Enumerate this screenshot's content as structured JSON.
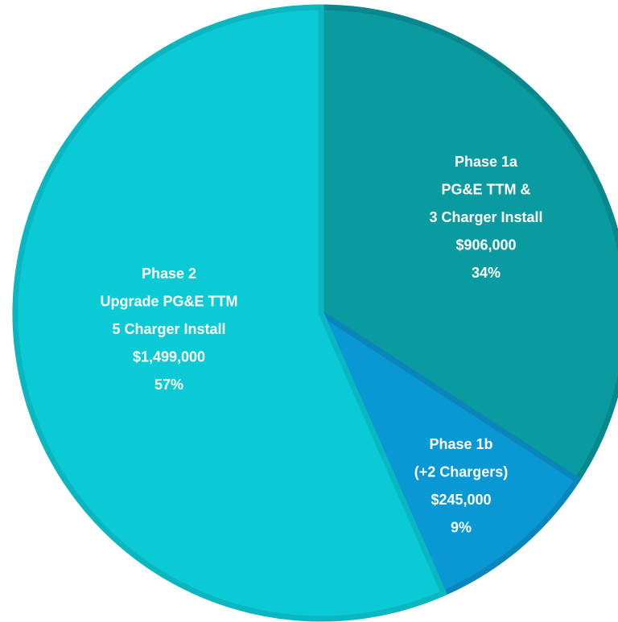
{
  "chart_data": {
    "type": "pie",
    "categories": [
      "Phase 1a",
      "Phase 1b",
      "Phase 2"
    ],
    "descriptions": [
      [
        "PG&E TTM &",
        "3 Charger Install"
      ],
      [
        "(+2 Chargers)"
      ],
      [
        "Upgrade PG&E TTM",
        "5 Charger Install"
      ]
    ],
    "values": [
      906000,
      245000,
      1499000
    ],
    "value_labels": [
      "$906,000",
      "$245,000",
      "$1,499,000"
    ],
    "percent_labels": [
      "34%",
      "9%",
      "57%"
    ],
    "colors": [
      "#0a9ba0",
      "#0a98d4",
      "#0acbd5"
    ],
    "edge_colors": [
      "#08888d",
      "#0a86bd",
      "#0ab6c0"
    ],
    "start_angle": 0,
    "direction": "clockwise"
  }
}
